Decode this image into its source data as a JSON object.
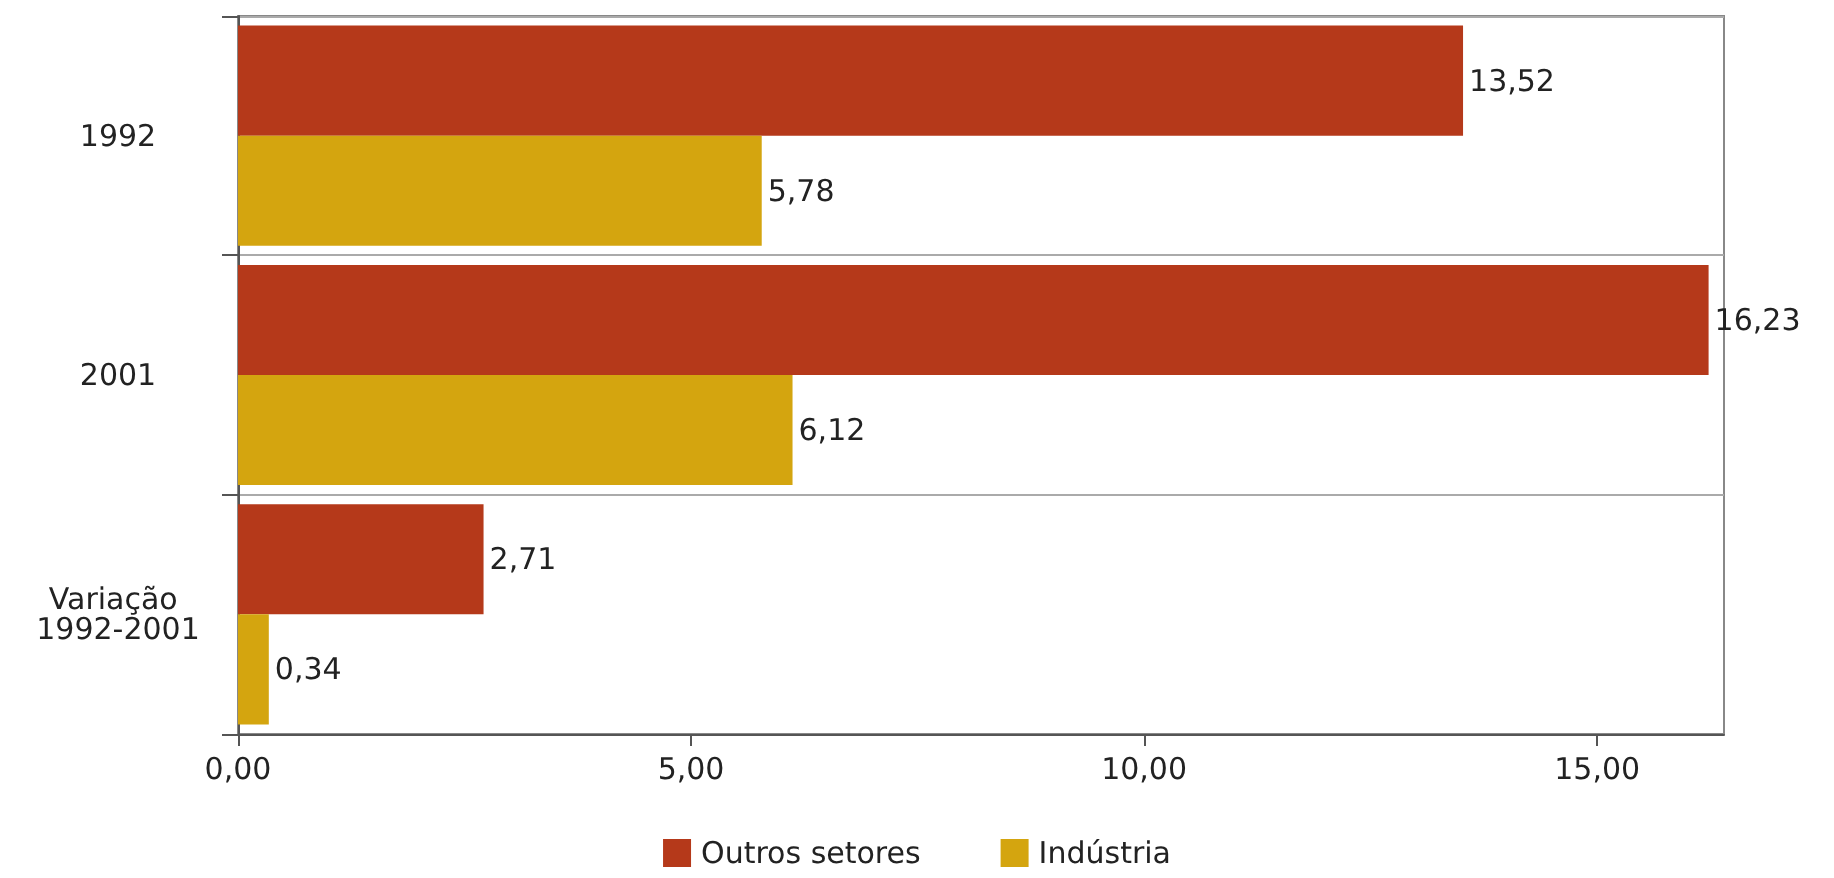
{
  "chart_data": {
    "type": "bar",
    "orientation": "horizontal",
    "categories": [
      "1992",
      "2001",
      "Variação 1992-2001"
    ],
    "series": [
      {
        "name": "Outros setores",
        "color": "#b5391a",
        "values": [
          13.52,
          16.23,
          2.71
        ],
        "value_labels": [
          "13,52",
          "16,23",
          "2,71"
        ]
      },
      {
        "name": "Indústria",
        "color": "#d4a50f",
        "values": [
          5.78,
          6.12,
          0.34
        ],
        "value_labels": [
          "5,78",
          "6,12",
          "0,34"
        ]
      }
    ],
    "xlim": [
      0,
      16.4
    ],
    "xticks": [
      {
        "value": 0,
        "label": "0,00"
      },
      {
        "value": 5,
        "label": "5,00"
      },
      {
        "value": 10,
        "label": "10,00"
      },
      {
        "value": 15,
        "label": "15,00"
      }
    ],
    "grid": "y",
    "legend": "bottom"
  }
}
